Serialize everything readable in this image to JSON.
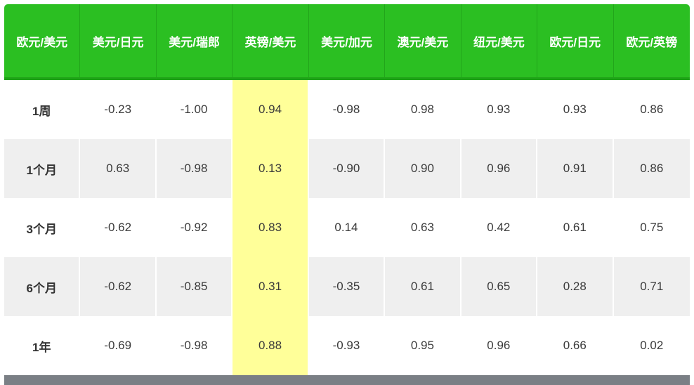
{
  "colors": {
    "header_bg": "#2bbf22",
    "header_text": "#ffffff",
    "highlight": "#ffff99",
    "stripe": "#efefef",
    "footer_bar": "#7a7f85"
  },
  "table": {
    "headers": [
      "欧元/美元",
      "美元/日元",
      "美元/瑞郎",
      "英镑/美元",
      "美元/加元",
      "澳元/美元",
      "纽元/美元",
      "欧元/日元",
      "欧元/英镑"
    ],
    "highlight_column": 3,
    "rows": [
      {
        "period": "1周",
        "values": [
          "-0.23",
          "-1.00",
          "0.94",
          "-0.98",
          "0.98",
          "0.93",
          "0.93",
          "0.86"
        ]
      },
      {
        "period": "1个月",
        "values": [
          "0.63",
          "-0.98",
          "0.13",
          "-0.90",
          "0.90",
          "0.96",
          "0.91",
          "0.86"
        ]
      },
      {
        "period": "3个月",
        "values": [
          "-0.62",
          "-0.92",
          "0.83",
          "0.14",
          "0.63",
          "0.42",
          "0.61",
          "0.75"
        ]
      },
      {
        "period": "6个月",
        "values": [
          "-0.62",
          "-0.85",
          "0.31",
          "-0.35",
          "0.61",
          "0.65",
          "0.28",
          "0.71"
        ]
      },
      {
        "period": "1年",
        "values": [
          "-0.69",
          "-0.98",
          "0.88",
          "-0.93",
          "0.95",
          "0.96",
          "0.66",
          "0.02"
        ]
      }
    ]
  }
}
